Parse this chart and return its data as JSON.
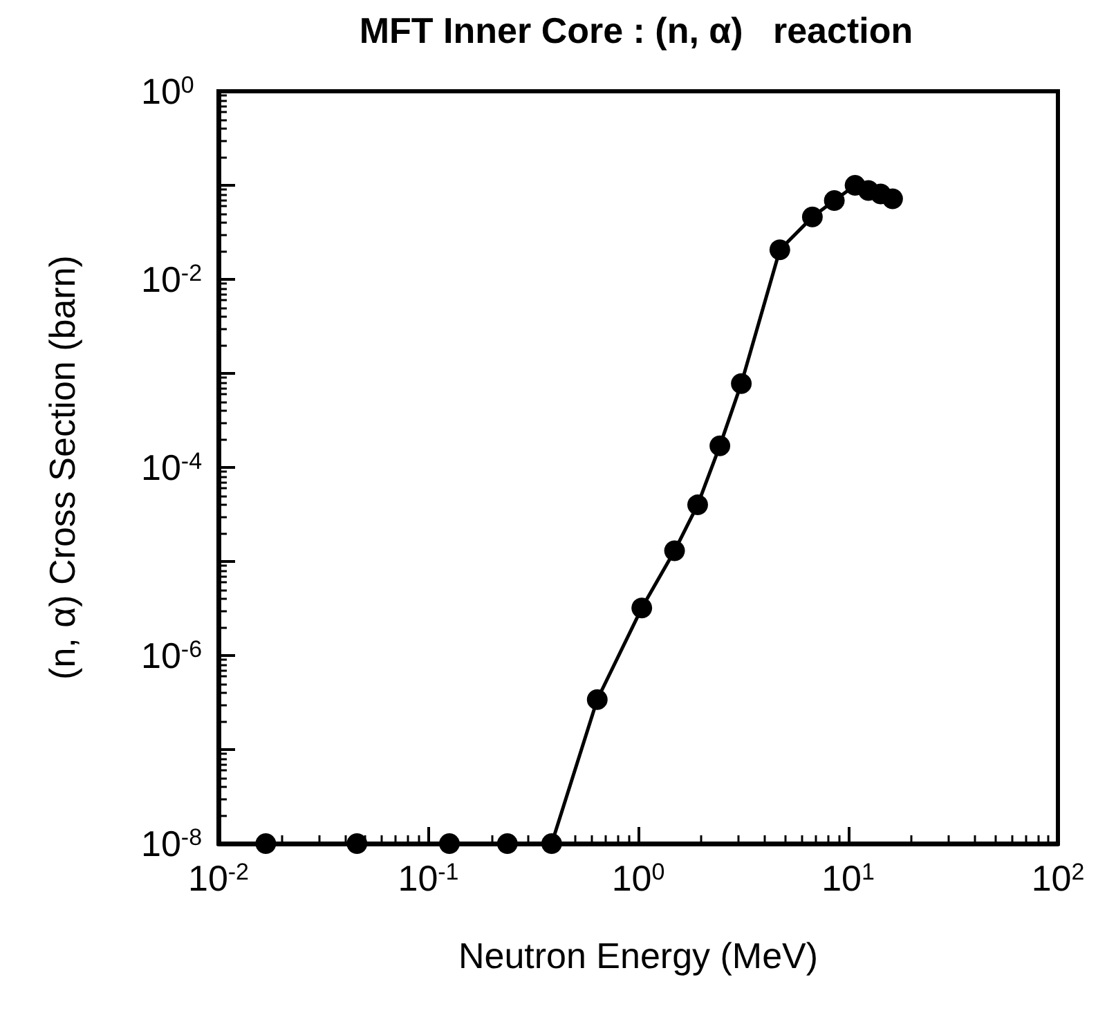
{
  "chart_data": {
    "type": "line",
    "title": "MFT Inner Core : (n, α)   reaction",
    "xlabel": "Neutron Energy (MeV)",
    "ylabel": "(n, α) Cross Section (barn)",
    "x": [
      0.0168,
      0.0457,
      0.126,
      0.238,
      0.387,
      0.638,
      1.04,
      1.49,
      1.92,
      2.45,
      3.1,
      4.73,
      6.76,
      8.6,
      10.8,
      12.5,
      14.3,
      16.3
    ],
    "series": [
      {
        "color": "#000000",
        "values": [
          1e-08,
          1e-08,
          1e-08,
          1e-08,
          1e-08,
          3.4e-07,
          3.2e-06,
          1.3e-05,
          4e-05,
          0.00017,
          0.00078,
          0.0206,
          0.046,
          0.069,
          0.1,
          0.088,
          0.081,
          0.072
        ]
      }
    ],
    "log": "xy",
    "xlim": [
      0.01,
      100
    ],
    "ylim": [
      1e-08,
      1
    ],
    "xticks": [
      {
        "value": 0.01,
        "label": "10$^{-2}$"
      },
      {
        "value": 0.1,
        "label": "10$^{-1}$"
      },
      {
        "value": 1,
        "label": "10$^{0}$"
      },
      {
        "value": 10,
        "label": "10$^{1}$"
      },
      {
        "value": 100,
        "label": "10$^{2}$"
      }
    ],
    "yticks": [
      {
        "value": 1e-08,
        "label": "10$^{-8}$"
      },
      {
        "value": 1e-07,
        "label": null
      },
      {
        "value": 1e-06,
        "label": "10$^{-6}$"
      },
      {
        "value": 1e-05,
        "label": null
      },
      {
        "value": 0.0001,
        "label": "10$^{-4}$"
      },
      {
        "value": 0.001,
        "label": null
      },
      {
        "value": 0.01,
        "label": "10$^{-2}$"
      },
      {
        "value": 0.1,
        "label": null
      },
      {
        "value": 1,
        "label": "10$^{0}$"
      }
    ],
    "grid": false,
    "marker": "circle",
    "line_style": "solid"
  }
}
